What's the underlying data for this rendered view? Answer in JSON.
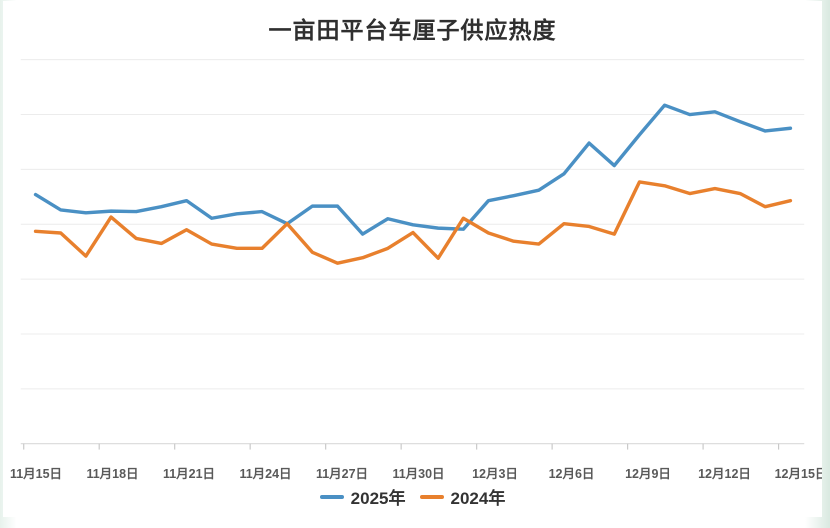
{
  "page": {
    "title": "一亩田平台车厘子供应热度"
  },
  "legend": {
    "items": [
      {
        "label": "2025年",
        "color": "#4a90c4"
      },
      {
        "label": "2024年",
        "color": "#e8802d"
      }
    ],
    "position": "bottom-center"
  },
  "chart_data": {
    "type": "line",
    "title": "一亩田平台车厘子供应热度",
    "x": [
      "11月15日",
      "11月16日",
      "11月17日",
      "11月18日",
      "11月19日",
      "11月20日",
      "11月21日",
      "11月22日",
      "11月23日",
      "11月24日",
      "11月25日",
      "11月26日",
      "11月27日",
      "11月28日",
      "11月29日",
      "11月30日",
      "12月1日",
      "12月2日",
      "12月3日",
      "12月4日",
      "12月5日",
      "12月6日",
      "12月7日",
      "12月8日",
      "12月9日",
      "12月10日",
      "12月11日",
      "12月12日",
      "12月13日",
      "12月14日",
      "12月15日"
    ],
    "x_tick_labels": [
      "11月15日",
      "11月18日",
      "11月21日",
      "11月24日",
      "11月27日",
      "11月30日",
      "12月3日",
      "12月6日",
      "12月9日",
      "12月12日",
      "12月15日"
    ],
    "series": [
      {
        "name": "2025年",
        "color": "#4a90c4",
        "values": [
          4.54,
          4.26,
          4.21,
          4.24,
          4.23,
          4.32,
          4.43,
          4.11,
          4.19,
          4.23,
          4.01,
          4.33,
          4.33,
          3.82,
          4.1,
          3.99,
          3.93,
          3.91,
          4.43,
          4.52,
          4.62,
          4.92,
          5.48,
          5.07,
          5.63,
          6.17,
          6.0,
          6.05,
          5.87,
          5.7,
          5.75
        ]
      },
      {
        "name": "2024年",
        "color": "#e8802d",
        "values": [
          3.87,
          3.84,
          3.42,
          4.13,
          3.74,
          3.65,
          3.9,
          3.64,
          3.56,
          3.56,
          4.01,
          3.49,
          3.29,
          3.39,
          3.56,
          3.85,
          3.38,
          4.11,
          3.84,
          3.69,
          3.64,
          4.01,
          3.96,
          3.82,
          4.77,
          4.7,
          4.56,
          4.65,
          4.56,
          4.32,
          4.43
        ]
      }
    ],
    "xlabel": "",
    "ylabel": "",
    "ylim": [
      0,
      7
    ],
    "y_axis_labels_visible": false,
    "grid": "horizontal",
    "gridline_count": 7,
    "legend_position": "bottom"
  },
  "style_colors": {
    "gridline": "#ececec",
    "axis_line": "#d9d9d9",
    "tick": "#c9c9c9",
    "axis_label": "#595959",
    "title": "#2f2f2f",
    "background": "#ffffff",
    "frame_tint": "#dfeee6"
  }
}
